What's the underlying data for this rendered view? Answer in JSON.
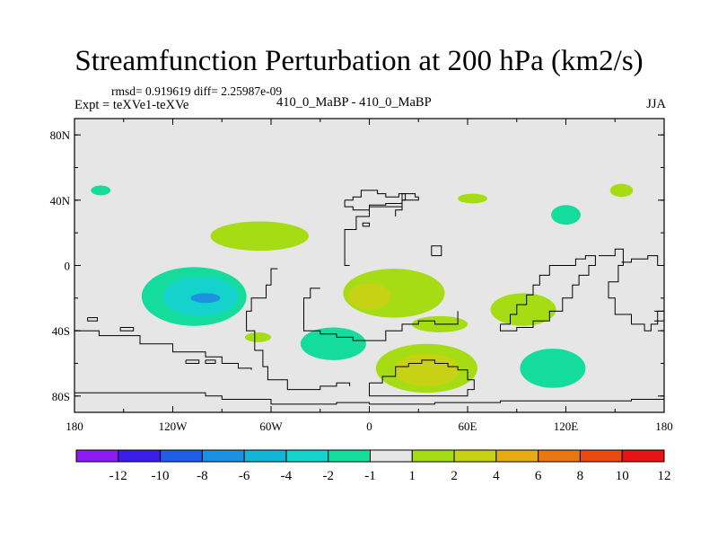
{
  "title": "Streamfunction Perturbation at 200 hPa (km2/s)",
  "stats_line": "rmsd= 0.919619 diff= 2.25987e-09",
  "experiment_label": "Expt = teXVe1-teXVe",
  "case_label": "410_0_MaBP - 410_0_MaBP",
  "season_label": "JJA",
  "chart_data": {
    "type": "heatmap",
    "title": "Streamfunction Perturbation at 200 hPa (km2/s)",
    "projection": "cylindrical equidistant",
    "x_range": [
      -180,
      180
    ],
    "y_range": [
      -90,
      90
    ],
    "x_ticks": [
      {
        "value": -180,
        "label": "180"
      },
      {
        "value": -120,
        "label": "120W"
      },
      {
        "value": -60,
        "label": "60W"
      },
      {
        "value": 0,
        "label": "0"
      },
      {
        "value": 60,
        "label": "60E"
      },
      {
        "value": 120,
        "label": "120E"
      },
      {
        "value": 180,
        "label": "180"
      }
    ],
    "y_ticks": [
      {
        "value": 80,
        "label": "80N"
      },
      {
        "value": 40,
        "label": "40N"
      },
      {
        "value": 0,
        "label": "0"
      },
      {
        "value": -40,
        "label": "40S"
      },
      {
        "value": -80,
        "label": "80S"
      }
    ],
    "background_color": "#e6e6e6",
    "colorbar": {
      "boundaries": [
        -12,
        -10,
        -8,
        -6,
        -4,
        -2,
        -1,
        1,
        2,
        4,
        6,
        8,
        10,
        12
      ],
      "labels": [
        "-12",
        "-10",
        "-8",
        "-6",
        "-4",
        "-2",
        "-1",
        "1",
        "2",
        "4",
        "6",
        "8",
        "10",
        "12"
      ],
      "colors": [
        "#8c1cf0",
        "#3b1ee8",
        "#1e5fe6",
        "#1e90e0",
        "#14b4d8",
        "#14d2cc",
        "#14dc9c",
        "#e6e6e6",
        "#a6dc14",
        "#c8d214",
        "#e6ac14",
        "#e87814",
        "#e84a14",
        "#e61414"
      ]
    },
    "contour_regions": [
      {
        "name": "positive",
        "level": "1 to 2",
        "color": "#a6dc14",
        "lon_center": -67,
        "lat_center": 18,
        "lon_halfwidth": 30,
        "lat_halfwidth": 9
      },
      {
        "name": "positive",
        "level": "1 to 2",
        "color": "#a6dc14",
        "lon_center": 15,
        "lat_center": -17,
        "lon_halfwidth": 31,
        "lat_halfwidth": 15
      },
      {
        "name": "positive",
        "level": "2 to 4",
        "color": "#c8d214",
        "lon_center": 0,
        "lat_center": -19,
        "lon_halfwidth": 13,
        "lat_halfwidth": 8
      },
      {
        "name": "positive",
        "level": "1 to 2",
        "color": "#a6dc14",
        "lon_center": 35,
        "lat_center": -63,
        "lon_halfwidth": 31,
        "lat_halfwidth": 15
      },
      {
        "name": "positive",
        "level": "2 to 4",
        "color": "#c8d214",
        "lon_center": 35,
        "lat_center": -64,
        "lon_halfwidth": 20,
        "lat_halfwidth": 10
      },
      {
        "name": "positive",
        "level": "1 to 2",
        "color": "#a6dc14",
        "lon_center": 43,
        "lat_center": -36,
        "lon_halfwidth": 17,
        "lat_halfwidth": 5
      },
      {
        "name": "positive",
        "level": "1 to 2",
        "color": "#a6dc14",
        "lon_center": 94,
        "lat_center": -27,
        "lon_halfwidth": 20,
        "lat_halfwidth": 10
      },
      {
        "name": "positive",
        "level": "1 to 2",
        "color": "#a6dc14",
        "lon_center": 63,
        "lat_center": 41,
        "lon_halfwidth": 9,
        "lat_halfwidth": 3
      },
      {
        "name": "negative",
        "level": "-1 to -2",
        "color": "#14dc9c",
        "lon_center": -107,
        "lat_center": -19,
        "lon_halfwidth": 32,
        "lat_halfwidth": 18
      },
      {
        "name": "negative",
        "level": "-2 to -4",
        "color": "#14d2cc",
        "lon_center": -103,
        "lat_center": -19,
        "lon_halfwidth": 23,
        "lat_halfwidth": 12
      },
      {
        "name": "negative",
        "level": "-4 to -6",
        "color": "#1e90e0",
        "lon_center": -100,
        "lat_center": -20,
        "lon_halfwidth": 9,
        "lat_halfwidth": 3
      },
      {
        "name": "negative",
        "level": "-1 to -2",
        "color": "#14dc9c",
        "lon_center": -22,
        "lat_center": -48,
        "lon_halfwidth": 20,
        "lat_halfwidth": 10
      },
      {
        "name": "negative",
        "level": "-1 to -2",
        "color": "#14dc9c",
        "lon_center": 112,
        "lat_center": -63,
        "lon_halfwidth": 20,
        "lat_halfwidth": 12
      },
      {
        "name": "negative",
        "level": "-1 to -2",
        "color": "#14dc9c",
        "lon_center": 120,
        "lat_center": 31,
        "lon_halfwidth": 9,
        "lat_halfwidth": 6
      },
      {
        "name": "negative",
        "level": "-1 to -2",
        "color": "#14dc9c",
        "lon_center": -164,
        "lat_center": 46,
        "lon_halfwidth": 6,
        "lat_halfwidth": 3
      },
      {
        "name": "positive",
        "level": "1 to 2",
        "color": "#a6dc14",
        "lon_center": 154,
        "lat_center": 46,
        "lon_halfwidth": 7,
        "lat_halfwidth": 4
      },
      {
        "name": "positive",
        "level": "1 to 2",
        "color": "#a6dc14",
        "lon_center": -68,
        "lat_center": -44,
        "lon_halfwidth": 8,
        "lat_halfwidth": 3
      }
    ],
    "coastlines": [
      {
        "name": "south-america-west",
        "points": [
          [
            -56,
            -2
          ],
          [
            -60,
            -12
          ],
          [
            -63,
            -20
          ],
          [
            -72,
            -28
          ],
          [
            -75,
            -40
          ],
          [
            -70,
            -52
          ],
          [
            -65,
            -62
          ],
          [
            -62,
            -70
          ],
          [
            -50,
            -76
          ],
          [
            -40,
            -76
          ],
          [
            -30,
            -74
          ],
          [
            -20,
            -72
          ],
          [
            -12,
            -74
          ]
        ]
      },
      {
        "name": "antarctic-peninsula",
        "points": [
          [
            -180,
            -78
          ],
          [
            -120,
            -78
          ],
          [
            -100,
            -80
          ],
          [
            -90,
            -82
          ],
          [
            -80,
            -82
          ],
          [
            -60,
            -85
          ],
          [
            -20,
            -84
          ],
          [
            0,
            -85
          ],
          [
            40,
            -84
          ],
          [
            80,
            -83
          ],
          [
            120,
            -83
          ],
          [
            160,
            -82
          ],
          [
            180,
            -82
          ]
        ]
      },
      {
        "name": "pacific-ridge-west",
        "points": [
          [
            -180,
            -40
          ],
          [
            -170,
            -40
          ],
          [
            -165,
            -43
          ],
          [
            -150,
            -43
          ],
          [
            -140,
            -48
          ],
          [
            -120,
            -53
          ],
          [
            -100,
            -56
          ],
          [
            -90,
            -60
          ],
          [
            -80,
            -63
          ],
          [
            -72,
            -64
          ]
        ]
      },
      {
        "name": "south-america-central",
        "points": [
          [
            -30,
            -14
          ],
          [
            -36,
            -20
          ],
          [
            -40,
            -28
          ],
          [
            -40,
            -40
          ],
          [
            -30,
            -42
          ],
          [
            -20,
            -44
          ],
          [
            -10,
            -46
          ],
          [
            0,
            -46
          ],
          [
            10,
            -40
          ],
          [
            20,
            -36
          ],
          [
            30,
            -34
          ],
          [
            40,
            -36
          ],
          [
            50,
            -36
          ],
          [
            54,
            -28
          ]
        ]
      },
      {
        "name": "africa-north",
        "points": [
          [
            -12,
            0
          ],
          [
            -15,
            10
          ],
          [
            -15,
            22
          ],
          [
            -8,
            30
          ],
          [
            0,
            37
          ],
          [
            10,
            38
          ],
          [
            20,
            44
          ],
          [
            28,
            42
          ],
          [
            30,
            40
          ],
          [
            20,
            34
          ],
          [
            16,
            30
          ]
        ]
      },
      {
        "name": "southern-africa",
        "points": [
          [
            0,
            -72
          ],
          [
            8,
            -68
          ],
          [
            16,
            -62
          ],
          [
            24,
            -60
          ],
          [
            32,
            -58
          ],
          [
            40,
            -60
          ],
          [
            48,
            -62
          ],
          [
            54,
            -64
          ],
          [
            60,
            -70
          ],
          [
            64,
            -76
          ],
          [
            60,
            -80
          ],
          [
            40,
            -80
          ],
          [
            20,
            -80
          ],
          [
            0,
            -76
          ],
          [
            0,
            -72
          ]
        ]
      },
      {
        "name": "india-sea",
        "points": [
          [
            80,
            -36
          ],
          [
            86,
            -30
          ],
          [
            90,
            -24
          ],
          [
            96,
            -18
          ],
          [
            100,
            -12
          ],
          [
            104,
            -6
          ],
          [
            110,
            0
          ],
          [
            120,
            0
          ],
          [
            126,
            4
          ],
          [
            132,
            6
          ],
          [
            138,
            0
          ],
          [
            134,
            -6
          ],
          [
            128,
            -12
          ],
          [
            124,
            -20
          ],
          [
            118,
            -28
          ],
          [
            110,
            -34
          ],
          [
            100,
            -38
          ],
          [
            90,
            -40
          ],
          [
            80,
            -36
          ]
        ]
      },
      {
        "name": "east-asia-coast",
        "points": [
          [
            140,
            6
          ],
          [
            150,
            10
          ],
          [
            155,
            0
          ],
          [
            152,
            -10
          ],
          [
            146,
            -20
          ],
          [
            150,
            -30
          ],
          [
            160,
            -36
          ],
          [
            168,
            -40
          ],
          [
            172,
            -36
          ],
          [
            176,
            -28
          ],
          [
            180,
            -24
          ]
        ]
      },
      {
        "name": "australia-outline",
        "points": [
          [
            154,
            2
          ],
          [
            160,
            4
          ],
          [
            170,
            6
          ],
          [
            176,
            0
          ],
          [
            180,
            -6
          ]
        ]
      },
      {
        "name": "north-atlantic-island",
        "points": [
          [
            -15,
            40
          ],
          [
            -10,
            42
          ],
          [
            -5,
            46
          ],
          [
            5,
            44
          ],
          [
            10,
            42
          ],
          [
            18,
            44
          ],
          [
            22,
            40
          ],
          [
            20,
            36
          ],
          [
            10,
            36
          ],
          [
            0,
            34
          ],
          [
            -10,
            36
          ],
          [
            -15,
            40
          ]
        ]
      },
      {
        "name": "small-island-1",
        "points": [
          [
            -4,
            24
          ],
          [
            0,
            24
          ],
          [
            0,
            26
          ],
          [
            -4,
            26
          ],
          [
            -4,
            24
          ]
        ]
      },
      {
        "name": "small-island-2",
        "points": [
          [
            38,
            6
          ],
          [
            44,
            6
          ],
          [
            44,
            12
          ],
          [
            38,
            12
          ],
          [
            38,
            6
          ]
        ]
      },
      {
        "name": "small-island-3",
        "points": [
          [
            -172,
            -32
          ],
          [
            -166,
            -32
          ],
          [
            -166,
            -34
          ],
          [
            -172,
            -34
          ],
          [
            -172,
            -32
          ]
        ]
      },
      {
        "name": "small-island-4",
        "points": [
          [
            -152,
            -38
          ],
          [
            -144,
            -38
          ],
          [
            -144,
            -40
          ],
          [
            -152,
            -40
          ],
          [
            -152,
            -38
          ]
        ]
      },
      {
        "name": "small-island-5",
        "points": [
          [
            -112,
            -58
          ],
          [
            -104,
            -58
          ],
          [
            -104,
            -60
          ],
          [
            -112,
            -60
          ],
          [
            -112,
            -58
          ]
        ]
      },
      {
        "name": "small-island-6",
        "points": [
          [
            -100,
            -58
          ],
          [
            -94,
            -58
          ],
          [
            -94,
            -60
          ],
          [
            -100,
            -60
          ],
          [
            -100,
            -58
          ]
        ]
      },
      {
        "name": "small-island-7",
        "points": [
          [
            174,
            -28
          ],
          [
            180,
            -28
          ],
          [
            180,
            -34
          ],
          [
            174,
            -34
          ]
        ]
      }
    ]
  }
}
